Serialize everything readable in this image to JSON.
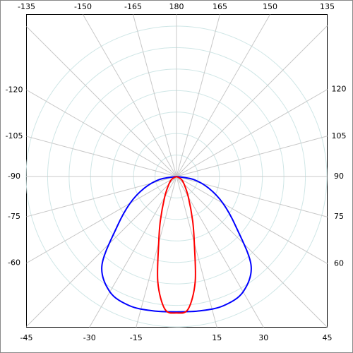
{
  "chart_data": {
    "type": "polar",
    "angle_ticks": [
      180,
      165,
      150,
      135,
      120,
      105,
      90,
      75,
      60,
      45,
      30,
      15,
      -15,
      -30,
      -45,
      -60,
      -75,
      -90,
      -105,
      -120,
      -135,
      -150,
      -165
    ],
    "rlim": [
      0,
      7
    ],
    "rticks": [
      1,
      2,
      3,
      4,
      5,
      6,
      7
    ],
    "grid": true,
    "series": [
      {
        "color": "#0000ff",
        "theta": [
          -90,
          -80,
          -70,
          -60,
          -50,
          -40,
          -30,
          -20,
          -10,
          0,
          10,
          20,
          30,
          40,
          50,
          60,
          70,
          80,
          90
        ],
        "values": [
          0,
          0.8,
          1.6,
          2.5,
          3.6,
          5.4,
          6.2,
          6.4,
          6.35,
          6.3,
          6.35,
          6.4,
          6.2,
          5.4,
          3.6,
          2.5,
          1.6,
          0.8,
          0
        ]
      },
      {
        "color": "#ff0000",
        "theta": [
          -90,
          -60,
          -45,
          -30,
          -20,
          -15,
          -10,
          -5,
          0,
          5,
          10,
          15,
          20,
          30,
          45,
          60,
          90
        ],
        "values": [
          0,
          0.25,
          0.5,
          1.1,
          2.2,
          3.2,
          5.0,
          6.2,
          6.35,
          6.2,
          5.0,
          3.2,
          2.2,
          1.1,
          0.5,
          0.25,
          0
        ]
      }
    ]
  }
}
